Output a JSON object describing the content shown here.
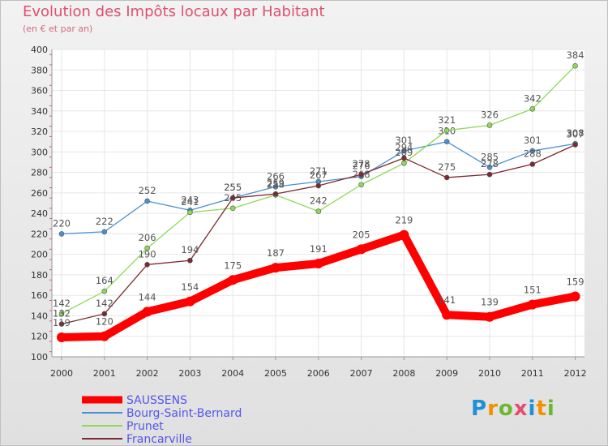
{
  "header": {
    "title": "Evolution des Impôts locaux par Habitant",
    "subtitle": "(en € et par an)"
  },
  "logo": {
    "text": "Proxiti",
    "letters": [
      "P",
      "r",
      "o",
      "x",
      "i",
      "t",
      "i"
    ],
    "colors": [
      "#1f8fd6",
      "#f29000",
      "#6ab82e",
      "#e0506e",
      "#1f8fd6",
      "#f29000",
      "#6ab82e"
    ]
  },
  "chart_data": {
    "type": "line",
    "title": "Evolution des Impôts locaux par Habitant",
    "subtitle": "(en € et par an)",
    "xlabel": "",
    "ylabel": "",
    "x": [
      "2000",
      "2001",
      "2002",
      "2003",
      "2004",
      "2005",
      "2006",
      "2007",
      "2008",
      "2009",
      "2010",
      "2011",
      "2012"
    ],
    "ylim": [
      100,
      400
    ],
    "yticks": [
      100,
      120,
      140,
      160,
      180,
      200,
      220,
      240,
      260,
      280,
      300,
      320,
      340,
      360,
      380,
      400
    ],
    "grid": true,
    "legend_position": "bottom-left",
    "series": [
      {
        "name": "SAUSSENS",
        "color": "#ff0000",
        "labels_visible": true,
        "values": [
          119,
          120,
          144,
          154,
          175,
          187,
          191,
          205,
          219,
          141,
          139,
          151,
          159
        ],
        "labels": [
          "119",
          "120",
          "144",
          "154",
          "175",
          "187",
          "191",
          "205",
          "219",
          "141",
          "139",
          "151",
          "159"
        ]
      },
      {
        "name": "Bourg-Saint-Bernard",
        "color": "#4a90d0",
        "labels_visible": true,
        "values": [
          220,
          222,
          252,
          243,
          255,
          266,
          271,
          276,
          301,
          310,
          285,
          301,
          308
        ],
        "labels": [
          "220",
          "222",
          "252",
          "243",
          "255",
          "266",
          "271",
          "276",
          "301",
          "310",
          "285",
          "301",
          "308"
        ]
      },
      {
        "name": "Prunet",
        "color": "#8ed858",
        "labels_visible": true,
        "values": [
          142,
          164,
          206,
          241,
          245,
          258,
          242,
          268,
          289,
          321,
          326,
          342,
          384
        ],
        "labels": [
          "142",
          "164",
          "206",
          "241",
          "245",
          "258",
          "242",
          "268",
          "289",
          "321",
          "326",
          "342",
          "384"
        ]
      },
      {
        "name": "Francarville",
        "color": "#7a2a30",
        "labels_visible": true,
        "values": [
          132,
          142,
          190,
          194,
          255,
          259,
          267,
          278,
          294,
          275,
          278,
          288,
          307
        ],
        "labels": [
          "132",
          "142",
          "190",
          "194",
          "255",
          "259",
          "267",
          "278",
          "294",
          "275",
          "278",
          "288",
          "307"
        ]
      }
    ]
  }
}
